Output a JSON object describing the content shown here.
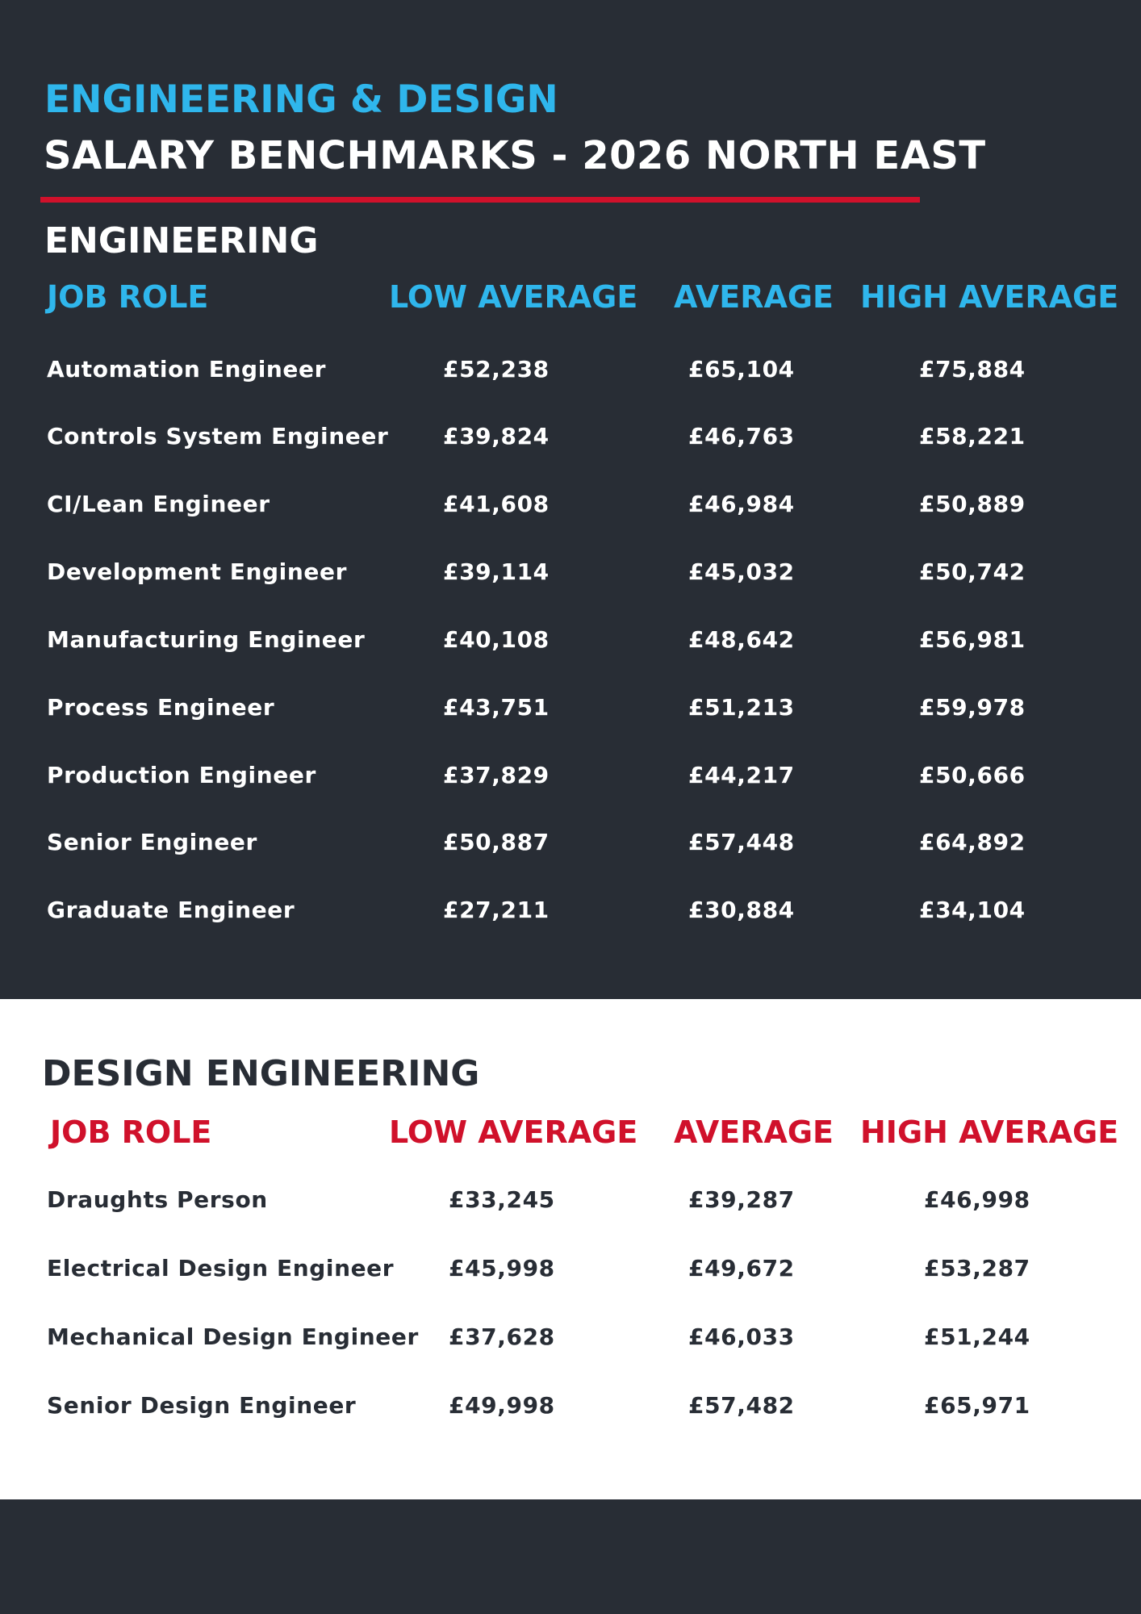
{
  "header": {
    "title_line1": "ENGINEERING & DESIGN",
    "title_line2": "SALARY BENCHMARKS - 2026 NORTH EAST"
  },
  "colors": {
    "background_dark": "#282d35",
    "background_light": "#ffffff",
    "accent_blue": "#2fb6ec",
    "accent_red": "#d0112b"
  },
  "engineering": {
    "title": "ENGINEERING",
    "columns": [
      "JOB ROLE",
      "LOW AVERAGE",
      "AVERAGE",
      "HIGH AVERAGE"
    ],
    "rows": [
      {
        "role": "Automation Engineer",
        "low": "£52,238",
        "avg": "£65,104",
        "high": "£75,884"
      },
      {
        "role": "Controls System Engineer",
        "low": "£39,824",
        "avg": "£46,763",
        "high": "£58,221"
      },
      {
        "role": "CI/Lean Engineer",
        "low": "£41,608",
        "avg": "£46,984",
        "high": "£50,889"
      },
      {
        "role": "Development Engineer",
        "low": "£39,114",
        "avg": "£45,032",
        "high": "£50,742"
      },
      {
        "role": "Manufacturing Engineer",
        "low": "£40,108",
        "avg": "£48,642",
        "high": "£56,981"
      },
      {
        "role": "Process Engineer",
        "low": "£43,751",
        "avg": "£51,213",
        "high": "£59,978"
      },
      {
        "role": "Production Engineer",
        "low": "£37,829",
        "avg": "£44,217",
        "high": "£50,666"
      },
      {
        "role": "Senior Engineer",
        "low": "£50,887",
        "avg": "£57,448",
        "high": "£64,892"
      },
      {
        "role": "Graduate Engineer",
        "low": "£27,211",
        "avg": "£30,884",
        "high": "£34,104"
      }
    ]
  },
  "design": {
    "title": "DESIGN ENGINEERING",
    "columns": [
      "JOB ROLE",
      "LOW AVERAGE",
      "AVERAGE",
      "HIGH AVERAGE"
    ],
    "rows": [
      {
        "role": "Draughts Person",
        "low": "£33,245",
        "avg": "£39,287",
        "high": "£46,998"
      },
      {
        "role": "Electrical Design Engineer",
        "low": "£45,998",
        "avg": "£49,672",
        "high": "£53,287"
      },
      {
        "role": "Mechanical Design Engineer",
        "low": "£37,628",
        "avg": "£46,033",
        "high": "£51,244"
      },
      {
        "role": "Senior Design Engineer",
        "low": "£49,998",
        "avg": "£57,482",
        "high": "£65,971"
      }
    ]
  }
}
